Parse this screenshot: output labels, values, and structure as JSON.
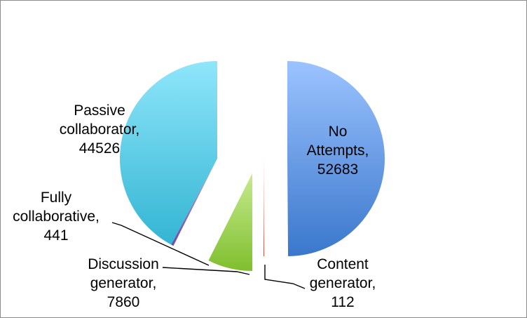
{
  "chart_data": {
    "type": "pie",
    "title": "",
    "exploded": true,
    "legend": "none",
    "slices": [
      {
        "category": "No",
        "category_line2": "Attempts,",
        "value": 52683,
        "value_text": "52683",
        "color_top": "#9cc3ff",
        "color_bottom": "#3a77cc"
      },
      {
        "category": "Content",
        "category_line2": "generator,",
        "value": 112,
        "value_text": "112",
        "color_top": "#ff9a7a",
        "color_bottom": "#c0392b"
      },
      {
        "category": "Discussion",
        "category_line2": "generator,",
        "value": 7860,
        "value_text": "7860",
        "color_top": "#c7ea8e",
        "color_bottom": "#7fbf2e"
      },
      {
        "category": "Fully",
        "category_line2": "collaborative,",
        "value": 441,
        "value_text": "441",
        "color_top": "#b7a3dc",
        "color_bottom": "#6a4fa8"
      },
      {
        "category": "Passive",
        "category_line2": "collaborator,",
        "value": 44526,
        "value_text": "44526",
        "color_top": "#8fe6fa",
        "color_bottom": "#33b5d3"
      }
    ]
  }
}
